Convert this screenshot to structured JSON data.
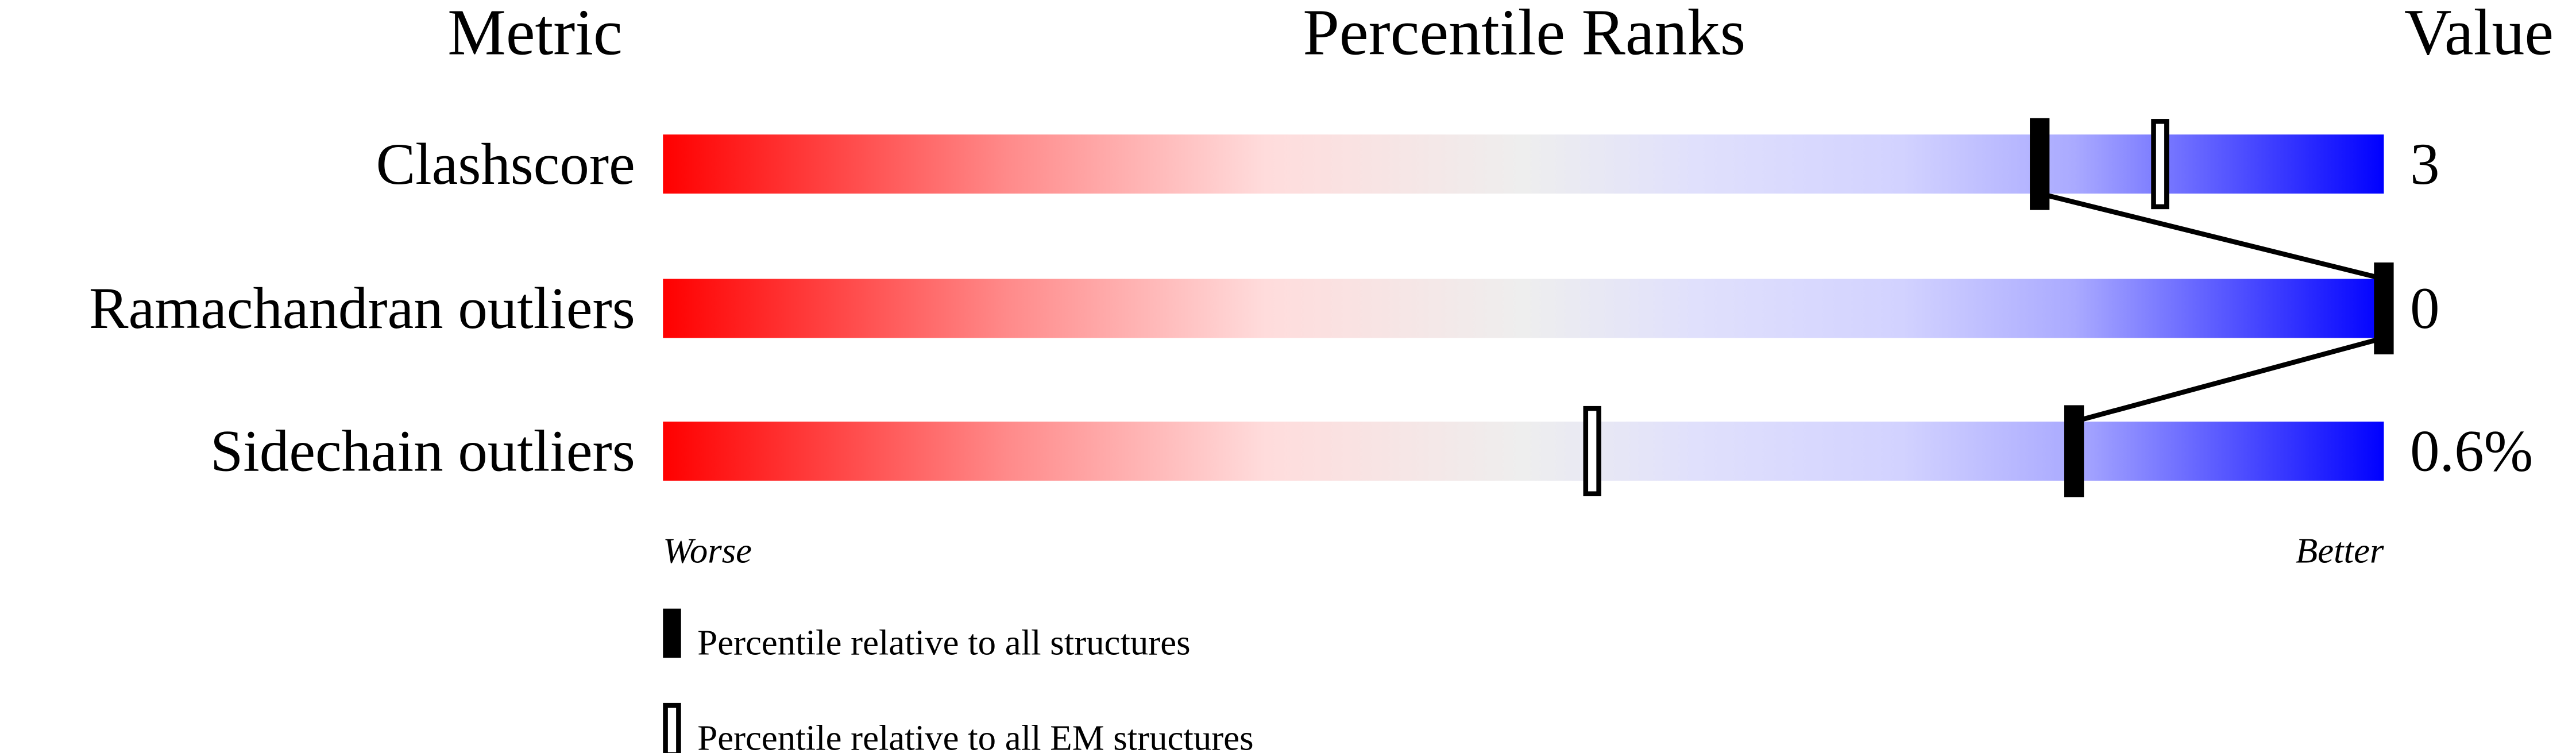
{
  "chart_data": {
    "type": "percentile-bars",
    "headers": {
      "metric": "Metric",
      "ranks": "Percentile Ranks",
      "value": "Value"
    },
    "xlim": [
      0,
      100
    ],
    "rows": [
      {
        "metric": "Clashscore",
        "value": "3",
        "percentile_all": 80,
        "percentile_em": 87
      },
      {
        "metric": "Ramachandran outliers",
        "value": "0",
        "percentile_all": 100,
        "percentile_em": null
      },
      {
        "metric": "Sidechain outliers",
        "value": "0.6%",
        "percentile_all": 82,
        "percentile_em": 54
      }
    ],
    "axis_labels": {
      "left": "Worse",
      "right": "Better"
    },
    "legend": [
      {
        "marker": "filled",
        "label": "Percentile relative to all structures"
      },
      {
        "marker": "open",
        "label": "Percentile relative to all EM structures"
      }
    ],
    "colors": {
      "worse": "#ff0000",
      "middle": "#eeeeee",
      "better": "#0000ff",
      "marker": "#000000"
    }
  }
}
